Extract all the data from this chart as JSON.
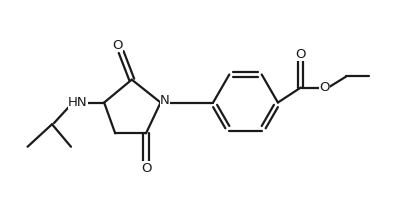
{
  "bg_color": "#ffffff",
  "line_color": "#1a1a1a",
  "line_width": 1.6,
  "font_size": 9.5,
  "figsize": [
    4.16,
    2.11
  ],
  "dpi": 100,
  "xlim": [
    0,
    10.5
  ],
  "ylim": [
    0,
    5.05
  ]
}
